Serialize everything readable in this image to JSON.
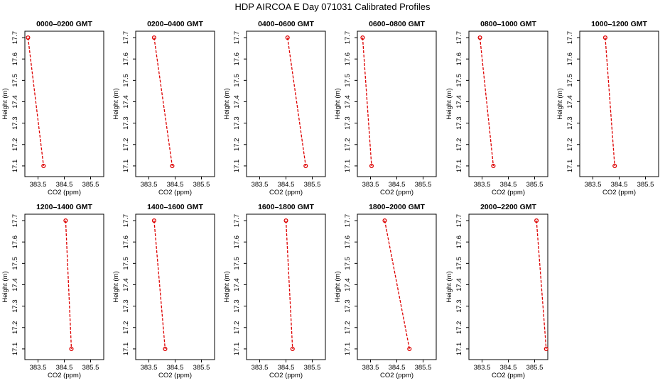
{
  "title": "HDP AIRCOA E  Day 071031  Calibrated Profiles",
  "colors": {
    "series": "#dd0000",
    "axis": "#000000"
  },
  "chart_data": [
    {
      "type": "line",
      "title": "0000–0200 GMT",
      "xlabel": "CO2 (ppm)",
      "ylabel": "Height (m)",
      "xlim": [
        383.0,
        386.0
      ],
      "ylim": [
        17.05,
        17.73
      ],
      "xticks": [
        383.5,
        384.5,
        385.5
      ],
      "xtick_labels": [
        "383.5",
        "384.5",
        "385.5"
      ],
      "yticks": [
        17.1,
        17.2,
        17.3,
        17.4,
        17.5,
        17.6,
        17.7
      ],
      "ytick_labels": [
        "17.1",
        "17.2",
        "17.3",
        "17.4",
        "17.5",
        "17.6",
        "17.7"
      ],
      "points": [
        {
          "x": 383.12,
          "y": 17.7
        },
        {
          "x": 383.71,
          "y": 17.1
        }
      ]
    },
    {
      "type": "line",
      "title": "0200–0400 GMT",
      "xlabel": "CO2 (ppm)",
      "ylabel": "Height (m)",
      "xlim": [
        383.0,
        386.0
      ],
      "ylim": [
        17.05,
        17.73
      ],
      "xticks": [
        383.5,
        384.5,
        385.5
      ],
      "xtick_labels": [
        "383.5",
        "384.5",
        "385.5"
      ],
      "yticks": [
        17.1,
        17.2,
        17.3,
        17.4,
        17.5,
        17.6,
        17.7
      ],
      "ytick_labels": [
        "17.1",
        "17.2",
        "17.3",
        "17.4",
        "17.5",
        "17.6",
        "17.7"
      ],
      "points": [
        {
          "x": 383.7,
          "y": 17.7
        },
        {
          "x": 384.39,
          "y": 17.1
        }
      ]
    },
    {
      "type": "line",
      "title": "0400–0600 GMT",
      "xlabel": "CO2 (ppm)",
      "ylabel": "Height (m)",
      "xlim": [
        383.0,
        386.0
      ],
      "ylim": [
        17.05,
        17.73
      ],
      "xticks": [
        383.5,
        384.5,
        385.5
      ],
      "xtick_labels": [
        "383.5",
        "384.5",
        "385.5"
      ],
      "yticks": [
        17.1,
        17.2,
        17.3,
        17.4,
        17.5,
        17.6,
        17.7
      ],
      "ytick_labels": [
        "17.1",
        "17.2",
        "17.3",
        "17.4",
        "17.5",
        "17.6",
        "17.7"
      ],
      "points": [
        {
          "x": 384.56,
          "y": 17.7
        },
        {
          "x": 385.25,
          "y": 17.1
        }
      ]
    },
    {
      "type": "line",
      "title": "0600–0800 GMT",
      "xlabel": "CO2 (ppm)",
      "ylabel": "Height (m)",
      "xlim": [
        383.0,
        386.0
      ],
      "ylim": [
        17.05,
        17.73
      ],
      "xticks": [
        383.5,
        384.5,
        385.5
      ],
      "xtick_labels": [
        "383.5",
        "384.5",
        "385.5"
      ],
      "yticks": [
        17.1,
        17.2,
        17.3,
        17.4,
        17.5,
        17.6,
        17.7
      ],
      "ytick_labels": [
        "17.1",
        "17.2",
        "17.3",
        "17.4",
        "17.5",
        "17.6",
        "17.7"
      ],
      "points": [
        {
          "x": 383.2,
          "y": 17.7
        },
        {
          "x": 383.54,
          "y": 17.1
        }
      ]
    },
    {
      "type": "line",
      "title": "0800–1000 GMT",
      "xlabel": "CO2 (ppm)",
      "ylabel": "Height (m)",
      "xlim": [
        383.0,
        386.0
      ],
      "ylim": [
        17.05,
        17.73
      ],
      "xticks": [
        383.5,
        384.5,
        385.5
      ],
      "xtick_labels": [
        "383.5",
        "384.5",
        "385.5"
      ],
      "yticks": [
        17.1,
        17.2,
        17.3,
        17.4,
        17.5,
        17.6,
        17.7
      ],
      "ytick_labels": [
        "17.1",
        "17.2",
        "17.3",
        "17.4",
        "17.5",
        "17.6",
        "17.7"
      ],
      "points": [
        {
          "x": 383.42,
          "y": 17.7
        },
        {
          "x": 383.93,
          "y": 17.1
        }
      ]
    },
    {
      "type": "line",
      "title": "1000–1200 GMT",
      "xlabel": "CO2 (ppm)",
      "ylabel": "Height (m)",
      "xlim": [
        383.0,
        386.0
      ],
      "ylim": [
        17.05,
        17.73
      ],
      "xticks": [
        383.5,
        384.5,
        385.5
      ],
      "xtick_labels": [
        "383.5",
        "384.5",
        "385.5"
      ],
      "yticks": [
        17.1,
        17.2,
        17.3,
        17.4,
        17.5,
        17.6,
        17.7
      ],
      "ytick_labels": [
        "17.1",
        "17.2",
        "17.3",
        "17.4",
        "17.5",
        "17.6",
        "17.7"
      ],
      "points": [
        {
          "x": 383.97,
          "y": 17.7
        },
        {
          "x": 384.33,
          "y": 17.1
        }
      ]
    },
    {
      "type": "line",
      "title": "1200–1400 GMT",
      "xlabel": "CO2 (ppm)",
      "ylabel": "Height (m)",
      "xlim": [
        383.0,
        386.0
      ],
      "ylim": [
        17.05,
        17.73
      ],
      "xticks": [
        383.5,
        384.5,
        385.5
      ],
      "xtick_labels": [
        "383.5",
        "384.5",
        "385.5"
      ],
      "yticks": [
        17.1,
        17.2,
        17.3,
        17.4,
        17.5,
        17.6,
        17.7
      ],
      "ytick_labels": [
        "17.1",
        "17.2",
        "17.3",
        "17.4",
        "17.5",
        "17.6",
        "17.7"
      ],
      "points": [
        {
          "x": 384.55,
          "y": 17.7
        },
        {
          "x": 384.77,
          "y": 17.1
        }
      ]
    },
    {
      "type": "line",
      "title": "1400–1600 GMT",
      "xlabel": "CO2 (ppm)",
      "ylabel": "Height (m)",
      "xlim": [
        383.0,
        386.0
      ],
      "ylim": [
        17.05,
        17.73
      ],
      "xticks": [
        383.5,
        384.5,
        385.5
      ],
      "xtick_labels": [
        "383.5",
        "384.5",
        "385.5"
      ],
      "yticks": [
        17.1,
        17.2,
        17.3,
        17.4,
        17.5,
        17.6,
        17.7
      ],
      "ytick_labels": [
        "17.1",
        "17.2",
        "17.3",
        "17.4",
        "17.5",
        "17.6",
        "17.7"
      ],
      "points": [
        {
          "x": 383.7,
          "y": 17.7
        },
        {
          "x": 384.12,
          "y": 17.1
        }
      ]
    },
    {
      "type": "line",
      "title": "1600–1800 GMT",
      "xlabel": "CO2 (ppm)",
      "ylabel": "Height (m)",
      "xlim": [
        383.0,
        386.0
      ],
      "ylim": [
        17.05,
        17.73
      ],
      "xticks": [
        383.5,
        384.5,
        385.5
      ],
      "xtick_labels": [
        "383.5",
        "384.5",
        "385.5"
      ],
      "yticks": [
        17.1,
        17.2,
        17.3,
        17.4,
        17.5,
        17.6,
        17.7
      ],
      "ytick_labels": [
        "17.1",
        "17.2",
        "17.3",
        "17.4",
        "17.5",
        "17.6",
        "17.7"
      ],
      "points": [
        {
          "x": 384.5,
          "y": 17.7
        },
        {
          "x": 384.75,
          "y": 17.1
        }
      ]
    },
    {
      "type": "line",
      "title": "1800–2000 GMT",
      "xlabel": "CO2 (ppm)",
      "ylabel": "Height (m)",
      "xlim": [
        383.0,
        386.0
      ],
      "ylim": [
        17.05,
        17.73
      ],
      "xticks": [
        383.5,
        384.5,
        385.5
      ],
      "xtick_labels": [
        "383.5",
        "384.5",
        "385.5"
      ],
      "yticks": [
        17.1,
        17.2,
        17.3,
        17.4,
        17.5,
        17.6,
        17.7
      ],
      "ytick_labels": [
        "17.1",
        "17.2",
        "17.3",
        "17.4",
        "17.5",
        "17.6",
        "17.7"
      ],
      "points": [
        {
          "x": 384.04,
          "y": 17.7
        },
        {
          "x": 384.98,
          "y": 17.1
        }
      ]
    },
    {
      "type": "line",
      "title": "2000–2200 GMT",
      "xlabel": "CO2 (ppm)",
      "ylabel": "Height (m)",
      "xlim": [
        383.0,
        386.0
      ],
      "ylim": [
        17.05,
        17.73
      ],
      "xticks": [
        383.5,
        384.5,
        385.5
      ],
      "xtick_labels": [
        "383.5",
        "384.5",
        "385.5"
      ],
      "yticks": [
        17.1,
        17.2,
        17.3,
        17.4,
        17.5,
        17.6,
        17.7
      ],
      "ytick_labels": [
        "17.1",
        "17.2",
        "17.3",
        "17.4",
        "17.5",
        "17.6",
        "17.7"
      ],
      "points": [
        {
          "x": 385.57,
          "y": 17.7
        },
        {
          "x": 385.94,
          "y": 17.1
        }
      ]
    }
  ]
}
